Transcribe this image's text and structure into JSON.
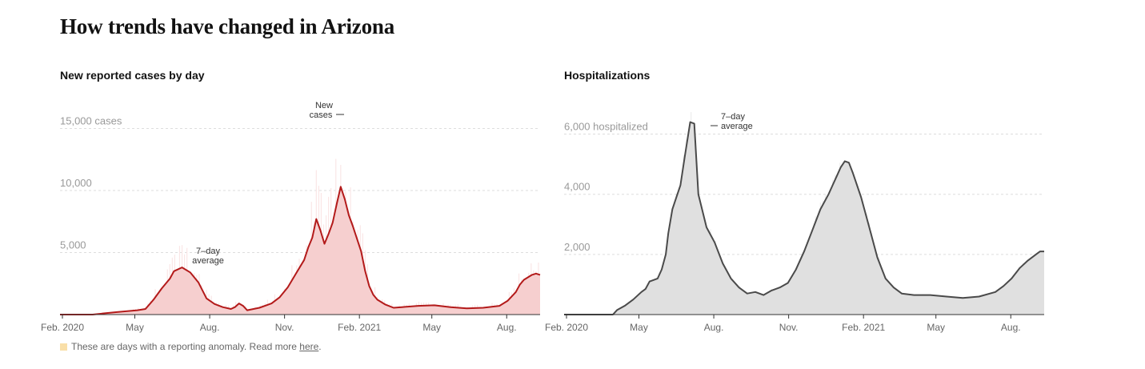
{
  "page": {
    "title": "How trends have changed in Arizona"
  },
  "chart_data": [
    {
      "type": "area",
      "title": "New reported cases by day",
      "unit_label": "cases",
      "ylim": [
        0,
        16000
      ],
      "ytick_labels": [
        "15,000 cases",
        "10,000",
        "5,000"
      ],
      "ytick_values": [
        15000,
        10000,
        5000
      ],
      "x_range_days": [
        0,
        590
      ],
      "xtick_labels": [
        "Feb. 2020",
        "May",
        "Aug.",
        "Nov.",
        "Feb. 2021",
        "May",
        "Aug."
      ],
      "xtick_days": [
        0,
        89,
        181,
        273,
        365,
        454,
        546
      ],
      "series": [
        {
          "name": "7-day average",
          "x": [
            0,
            40,
            55,
            70,
            95,
            105,
            115,
            125,
            135,
            140,
            150,
            160,
            170,
            180,
            190,
            200,
            210,
            215,
            220,
            225,
            230,
            245,
            260,
            270,
            280,
            290,
            300,
            305,
            310,
            315,
            320,
            325,
            330,
            335,
            340,
            345,
            350,
            355,
            360,
            370,
            375,
            380,
            385,
            390,
            400,
            410,
            420,
            440,
            460,
            480,
            500,
            520,
            540,
            550,
            560,
            565,
            570,
            580,
            585,
            590
          ],
          "values": [
            0,
            0,
            100,
            200,
            350,
            450,
            1200,
            2100,
            2900,
            3500,
            3800,
            3400,
            2600,
            1300,
            850,
            600,
            450,
            600,
            900,
            700,
            350,
            550,
            900,
            1400,
            2200,
            3300,
            4400,
            5400,
            6200,
            7700,
            6800,
            5700,
            6500,
            7400,
            8900,
            10300,
            9300,
            8000,
            7100,
            5100,
            3500,
            2300,
            1600,
            1200,
            800,
            550,
            600,
            700,
            750,
            600,
            500,
            550,
            700,
            1100,
            1800,
            2400,
            2800,
            3200,
            3300,
            3200
          ]
        }
      ],
      "annotations": [
        "New",
        "cases",
        "7–day",
        "average"
      ]
    },
    {
      "type": "area",
      "title": "Hospitalizations",
      "unit_label": "hospitalized",
      "ylim": [
        0,
        6600
      ],
      "ytick_labels": [
        "6,000 hospitalized",
        "4,000",
        "2,000"
      ],
      "ytick_values": [
        6000,
        4000,
        2000
      ],
      "x_range_days": [
        0,
        590
      ],
      "xtick_labels": [
        "Feb. 2020",
        "May",
        "Aug.",
        "Nov.",
        "Feb. 2021",
        "May",
        "Aug."
      ],
      "xtick_days": [
        0,
        89,
        181,
        273,
        365,
        454,
        546
      ],
      "series": [
        {
          "name": "7-day average",
          "x": [
            0,
            60,
            65,
            75,
            85,
            95,
            100,
            105,
            115,
            120,
            125,
            128,
            133,
            138,
            143,
            148,
            155,
            160,
            165,
            175,
            185,
            195,
            205,
            215,
            225,
            235,
            245,
            255,
            265,
            275,
            285,
            295,
            305,
            315,
            325,
            330,
            335,
            340,
            345,
            350,
            355,
            365,
            375,
            385,
            395,
            405,
            415,
            430,
            450,
            470,
            490,
            510,
            530,
            540,
            550,
            560,
            570,
            580,
            585,
            590
          ],
          "values": [
            0,
            0,
            150,
            300,
            500,
            750,
            850,
            1100,
            1200,
            1500,
            2000,
            2700,
            3500,
            3900,
            4300,
            5200,
            6400,
            6350,
            4000,
            2900,
            2400,
            1700,
            1200,
            900,
            700,
            750,
            650,
            800,
            900,
            1050,
            1500,
            2100,
            2800,
            3500,
            4000,
            4300,
            4600,
            4900,
            5100,
            5050,
            4700,
            3900,
            2900,
            1900,
            1200,
            900,
            700,
            650,
            650,
            600,
            550,
            600,
            750,
            950,
            1200,
            1550,
            1800,
            2000,
            2100,
            2100
          ]
        }
      ],
      "annotations": [
        "7–day",
        "average"
      ]
    }
  ],
  "footnote": {
    "text": "These are days with a reporting anomaly. Read more ",
    "link": "here",
    "end": "."
  },
  "colors": {
    "cases_line": "#b31a1a",
    "cases_fill": "#f6cfcf",
    "cases_spike": "#fae6e6",
    "hosp_line": "#4a4a4a",
    "hosp_fill": "#e0e0e0",
    "hosp_spike": "#ededed",
    "grid": "#dddddd",
    "axis": "#333333",
    "anomaly": "#f9dfa8"
  }
}
